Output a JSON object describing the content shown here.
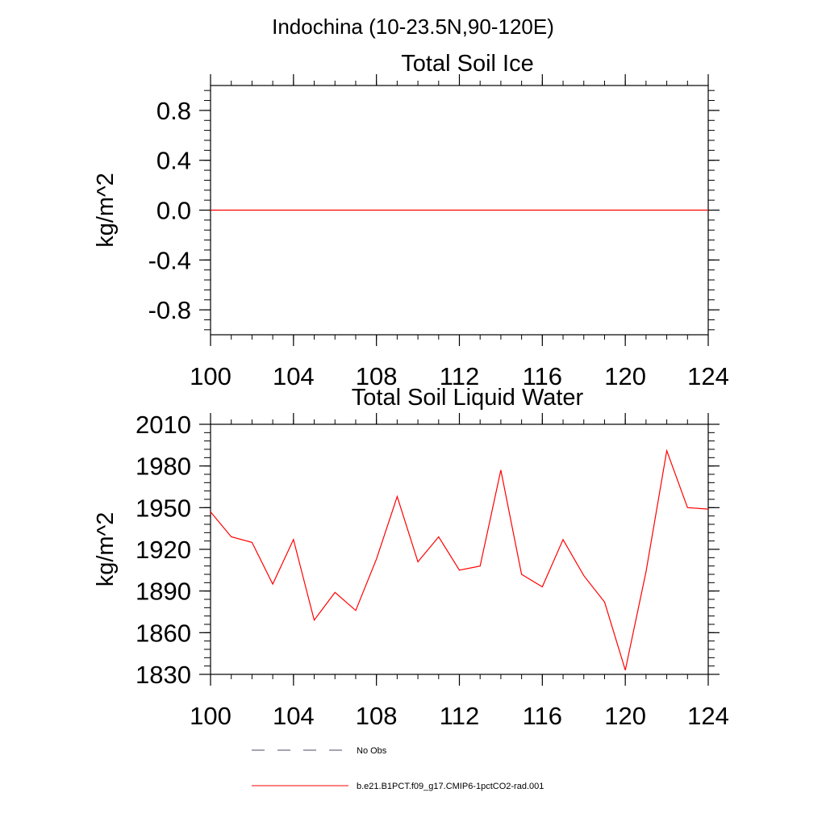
{
  "figure": {
    "main_title": "Indochina (10-23.5N,90-120E)"
  },
  "chart_data": [
    {
      "type": "line",
      "title": "Total Soil Ice",
      "xlabel": "",
      "ylabel": "kg/m^2",
      "xlim": [
        100,
        124
      ],
      "ylim": [
        -1.0,
        1.0
      ],
      "x_ticks": [
        100,
        104,
        108,
        112,
        116,
        120,
        124
      ],
      "x_tick_labels": [
        "100",
        "104",
        "108",
        "112",
        "116",
        "120",
        "124"
      ],
      "y_ticks": [
        -0.8,
        -0.4,
        0.0,
        0.4,
        0.8
      ],
      "y_tick_labels": [
        "-0.8",
        "-0.4",
        "0.0",
        "0.4",
        "0.8"
      ],
      "grid": false,
      "series": [
        {
          "name": "b.e21.B1PCT.f09_g17.CMIP6-1pctCO2-rad.001",
          "color": "#ff0000",
          "x": [
            100,
            101,
            102,
            103,
            104,
            105,
            106,
            107,
            108,
            109,
            110,
            111,
            112,
            113,
            114,
            115,
            116,
            117,
            118,
            119,
            120,
            121,
            122,
            123,
            124
          ],
          "y": [
            0,
            0,
            0,
            0,
            0,
            0,
            0,
            0,
            0,
            0,
            0,
            0,
            0,
            0,
            0,
            0,
            0,
            0,
            0,
            0,
            0,
            0,
            0,
            0,
            0
          ]
        }
      ]
    },
    {
      "type": "line",
      "title": "Total Soil Liquid Water",
      "xlabel": "",
      "ylabel": "kg/m^2",
      "xlim": [
        100,
        124
      ],
      "ylim": [
        1830,
        2010
      ],
      "x_ticks": [
        100,
        104,
        108,
        112,
        116,
        120,
        124
      ],
      "x_tick_labels": [
        "100",
        "104",
        "108",
        "112",
        "116",
        "120",
        "124"
      ],
      "y_ticks": [
        1830,
        1860,
        1890,
        1920,
        1950,
        1980,
        2010
      ],
      "y_tick_labels": [
        "1830",
        "1860",
        "1890",
        "1920",
        "1950",
        "1980",
        "2010"
      ],
      "grid": false,
      "series": [
        {
          "name": "b.e21.B1PCT.f09_g17.CMIP6-1pctCO2-rad.001",
          "color": "#ff0000",
          "x": [
            100,
            101,
            102,
            103,
            104,
            105,
            106,
            107,
            108,
            109,
            110,
            111,
            112,
            113,
            114,
            115,
            116,
            117,
            118,
            119,
            120,
            121,
            122,
            123,
            124
          ],
          "y": [
            1947,
            1929,
            1925,
            1895,
            1927,
            1869,
            1889,
            1876,
            1913,
            1958,
            1911,
            1929,
            1905,
            1908,
            1977,
            1902,
            1893,
            1927,
            1901,
            1882,
            1833,
            1904,
            1991,
            1950,
            1949
          ]
        }
      ]
    }
  ],
  "legend": {
    "placement": "bottom",
    "items": [
      {
        "label": "No Obs",
        "style": "dashed",
        "color": "#4a4a6a"
      },
      {
        "label": "b.e21.B1PCT.f09_g17.CMIP6-1pctCO2-rad.001",
        "style": "solid",
        "color": "#ff0000"
      }
    ]
  }
}
